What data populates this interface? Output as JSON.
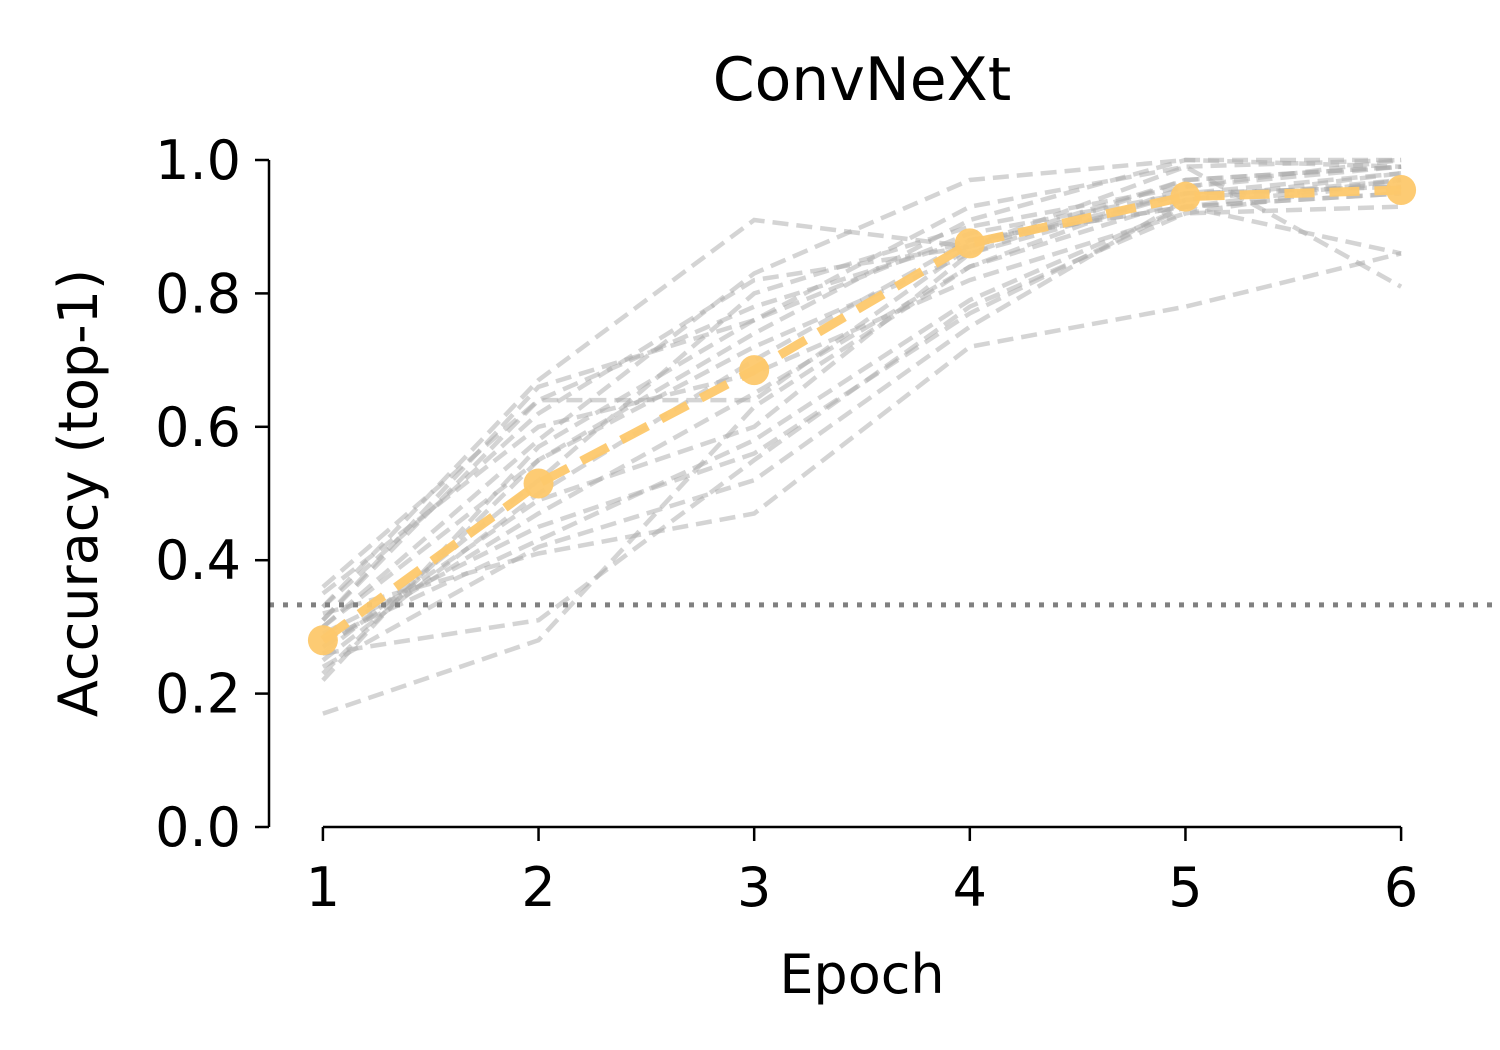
{
  "chart_data": {
    "type": "line",
    "title": "ConvNeXt",
    "xlabel": "Epoch",
    "ylabel": "Accuracy (top-1)",
    "x": [
      1,
      2,
      3,
      4,
      5,
      6
    ],
    "xlim": [
      0.75,
      6.25
    ],
    "ylim": [
      0.0,
      1.0
    ],
    "xticks": [
      "1",
      "2",
      "3",
      "4",
      "5",
      "6"
    ],
    "yticks": [
      "0.0",
      "0.2",
      "0.4",
      "0.6",
      "0.8",
      "1.0"
    ],
    "grid": false,
    "legend": "none",
    "chance_level": 0.333,
    "mean_series": {
      "values": [
        0.28,
        0.515,
        0.685,
        0.875,
        0.945,
        0.955
      ],
      "color": "#fdc86b"
    },
    "runs_color": "#a9a9a9",
    "chance_color": "#808080",
    "runs": [
      [
        0.36,
        0.64,
        0.78,
        0.88,
        0.93,
        0.86
      ],
      [
        0.33,
        0.67,
        0.91,
        0.87,
        0.99,
        0.81
      ],
      [
        0.3,
        0.58,
        0.83,
        0.97,
        1.0,
        1.0
      ],
      [
        0.25,
        0.5,
        0.7,
        0.88,
        0.93,
        0.95
      ],
      [
        0.23,
        0.55,
        0.72,
        0.86,
        0.97,
        0.99
      ],
      [
        0.27,
        0.47,
        0.65,
        0.84,
        0.94,
        0.98
      ],
      [
        0.28,
        0.43,
        0.58,
        0.79,
        0.93,
        0.97
      ],
      [
        0.31,
        0.64,
        0.64,
        0.87,
        0.95,
        0.96
      ],
      [
        0.26,
        0.52,
        0.8,
        0.9,
        0.96,
        1.0
      ],
      [
        0.22,
        0.57,
        0.76,
        0.93,
        0.99,
        1.0
      ],
      [
        0.35,
        0.6,
        0.68,
        0.82,
        0.92,
        0.93
      ],
      [
        0.29,
        0.45,
        0.56,
        0.77,
        0.93,
        0.95
      ],
      [
        0.24,
        0.42,
        0.52,
        0.75,
        0.94,
        0.97
      ],
      [
        0.32,
        0.41,
        0.47,
        0.72,
        0.78,
        0.86
      ],
      [
        0.17,
        0.28,
        0.63,
        0.84,
        0.96,
        0.99
      ],
      [
        0.26,
        0.31,
        0.55,
        0.78,
        0.92,
        0.97
      ],
      [
        0.3,
        0.55,
        0.74,
        0.91,
        1.0,
        0.99
      ],
      [
        0.33,
        0.62,
        0.82,
        0.87,
        0.97,
        0.99
      ],
      [
        0.27,
        0.49,
        0.6,
        0.86,
        0.95,
        0.96
      ],
      [
        0.31,
        0.66,
        0.76,
        0.89,
        0.95,
        0.98
      ]
    ]
  }
}
